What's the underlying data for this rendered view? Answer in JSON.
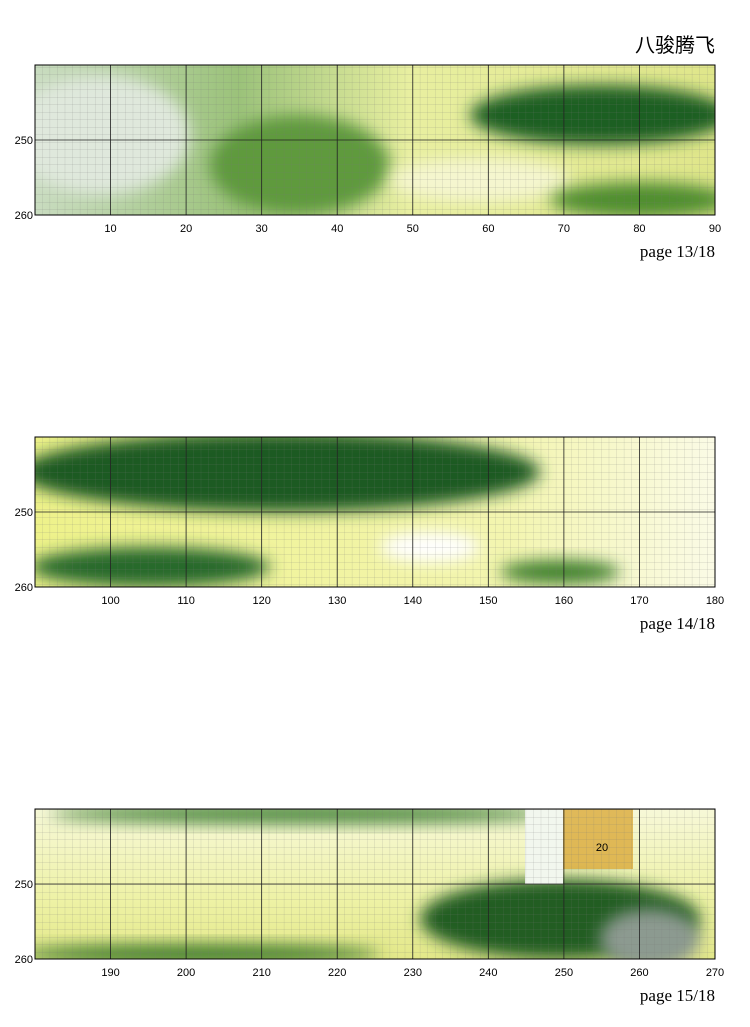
{
  "title": "八骏腾飞",
  "panels": [
    {
      "y_labels": [
        "250",
        "260"
      ],
      "x_labels": [
        "10",
        "20",
        "30",
        "40",
        "50",
        "60",
        "70",
        "80",
        "90"
      ],
      "page": "page 13/18"
    },
    {
      "y_labels": [
        "250",
        "260"
      ],
      "x_labels": [
        "100",
        "110",
        "120",
        "130",
        "140",
        "150",
        "160",
        "170",
        "180"
      ],
      "page": "page 14/18"
    },
    {
      "y_labels": [
        "250",
        "260"
      ],
      "x_labels": [
        "190",
        "200",
        "210",
        "220",
        "230",
        "240",
        "250",
        "260",
        "270"
      ],
      "page": "page 15/18",
      "note": "20"
    }
  ]
}
